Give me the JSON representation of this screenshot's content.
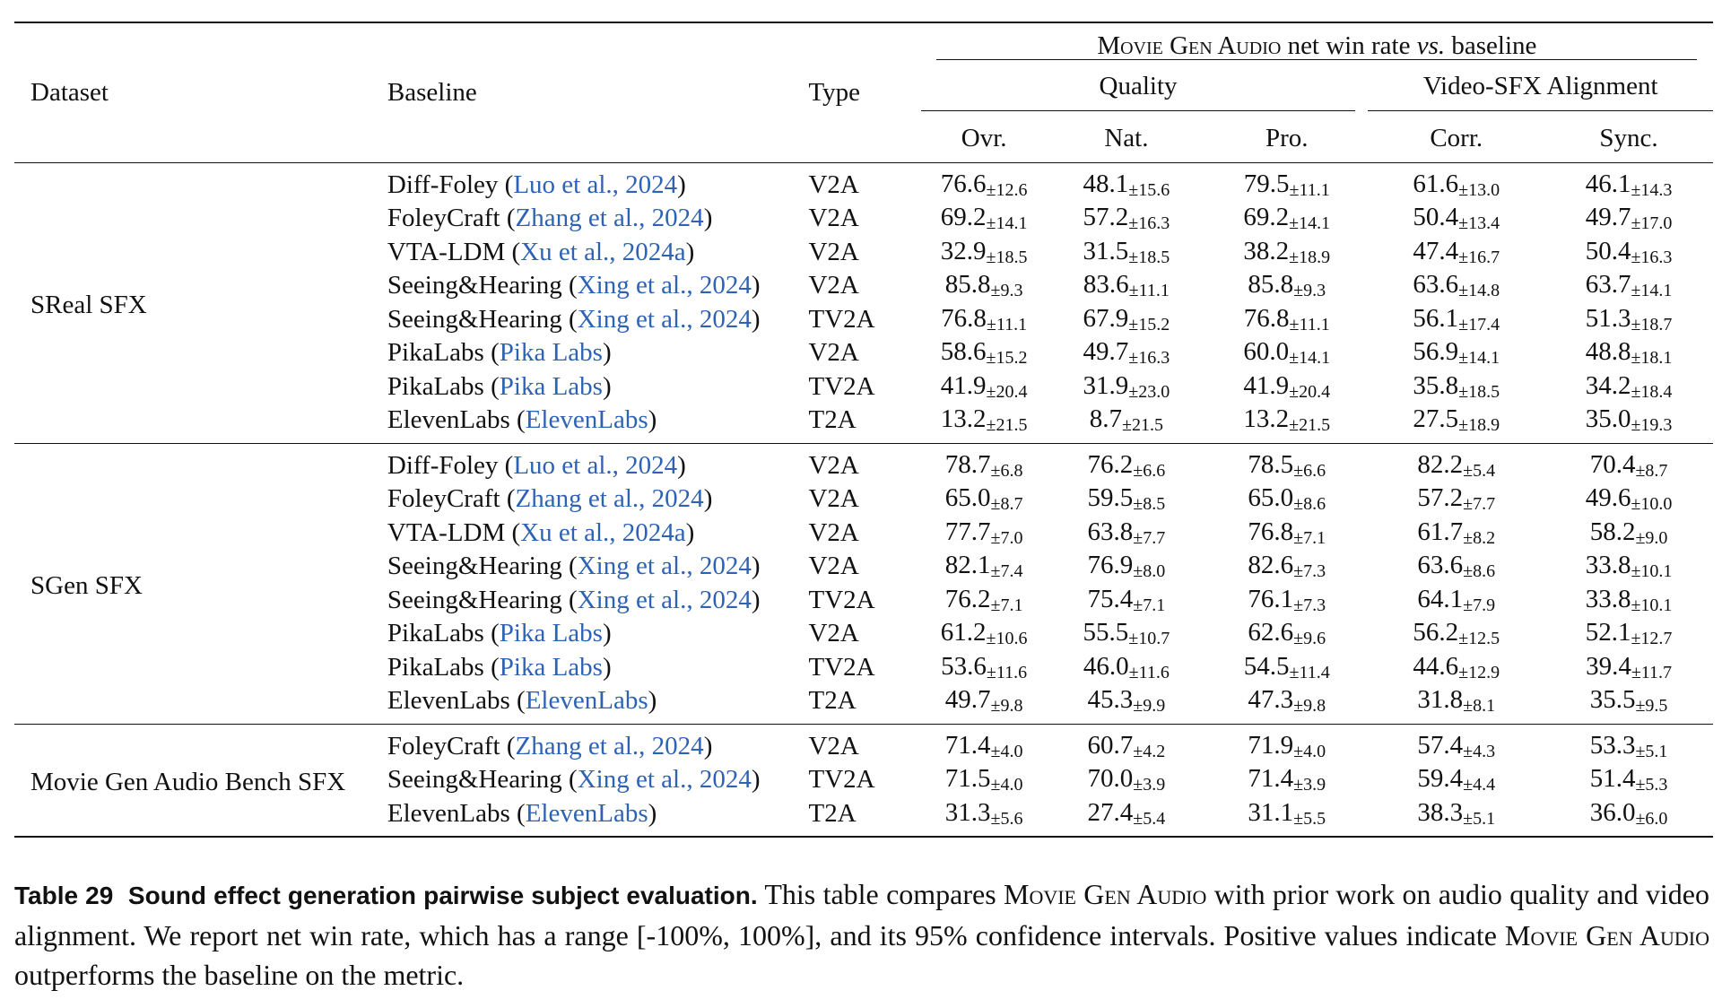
{
  "table": {
    "headers": {
      "dataset": "Dataset",
      "baseline": "Baseline",
      "type": "Type",
      "group_prefix": "Movie Gen Audio",
      "group_mid": " net win rate ",
      "group_vs": "vs.",
      "group_suffix": " baseline",
      "quality": "Quality",
      "alignment": "Video-SFX Alignment",
      "ovr": "Ovr.",
      "nat": "Nat.",
      "pro": "Pro.",
      "corr": "Corr.",
      "sync": "Sync."
    },
    "groups": [
      {
        "dataset": "SReal SFX",
        "rows": [
          {
            "name": "Diff-Foley",
            "cite": "Luo et al., 2024",
            "type": "V2A",
            "vals": [
              [
                "76.6",
                "±12.6"
              ],
              [
                "48.1",
                "±15.6"
              ],
              [
                "79.5",
                "±11.1"
              ],
              [
                "61.6",
                "±13.0"
              ],
              [
                "46.1",
                "±14.3"
              ]
            ]
          },
          {
            "name": "FoleyCraft",
            "cite": "Zhang et al., 2024",
            "type": "V2A",
            "vals": [
              [
                "69.2",
                "±14.1"
              ],
              [
                "57.2",
                "±16.3"
              ],
              [
                "69.2",
                "±14.1"
              ],
              [
                "50.4",
                "±13.4"
              ],
              [
                "49.7",
                "±17.0"
              ]
            ]
          },
          {
            "name": "VTA-LDM",
            "cite": "Xu et al., 2024a",
            "type": "V2A",
            "vals": [
              [
                "32.9",
                "±18.5"
              ],
              [
                "31.5",
                "±18.5"
              ],
              [
                "38.2",
                "±18.9"
              ],
              [
                "47.4",
                "±16.7"
              ],
              [
                "50.4",
                "±16.3"
              ]
            ]
          },
          {
            "name": "Seeing&Hearing",
            "cite": "Xing et al., 2024",
            "type": "V2A",
            "vals": [
              [
                "85.8",
                "±9.3"
              ],
              [
                "83.6",
                "±11.1"
              ],
              [
                "85.8",
                "±9.3"
              ],
              [
                "63.6",
                "±14.8"
              ],
              [
                "63.7",
                "±14.1"
              ]
            ]
          },
          {
            "name": "Seeing&Hearing",
            "cite": "Xing et al., 2024",
            "type": "TV2A",
            "vals": [
              [
                "76.8",
                "±11.1"
              ],
              [
                "67.9",
                "±15.2"
              ],
              [
                "76.8",
                "±11.1"
              ],
              [
                "56.1",
                "±17.4"
              ],
              [
                "51.3",
                "±18.7"
              ]
            ]
          },
          {
            "name": "PikaLabs",
            "cite": "Pika Labs",
            "type": "V2A",
            "vals": [
              [
                "58.6",
                "±15.2"
              ],
              [
                "49.7",
                "±16.3"
              ],
              [
                "60.0",
                "±14.1"
              ],
              [
                "56.9",
                "±14.1"
              ],
              [
                "48.8",
                "±18.1"
              ]
            ]
          },
          {
            "name": "PikaLabs",
            "cite": "Pika Labs",
            "type": "TV2A",
            "vals": [
              [
                "41.9",
                "±20.4"
              ],
              [
                "31.9",
                "±23.0"
              ],
              [
                "41.9",
                "±20.4"
              ],
              [
                "35.8",
                "±18.5"
              ],
              [
                "34.2",
                "±18.4"
              ]
            ]
          },
          {
            "name": "ElevenLabs",
            "cite": "ElevenLabs",
            "type": "T2A",
            "vals": [
              [
                "13.2",
                "±21.5"
              ],
              [
                "8.7",
                "±21.5"
              ],
              [
                "13.2",
                "±21.5"
              ],
              [
                "27.5",
                "±18.9"
              ],
              [
                "35.0",
                "±19.3"
              ]
            ]
          }
        ]
      },
      {
        "dataset": "SGen SFX",
        "rows": [
          {
            "name": "Diff-Foley",
            "cite": "Luo et al., 2024",
            "type": "V2A",
            "vals": [
              [
                "78.7",
                "±6.8"
              ],
              [
                "76.2",
                "±6.6"
              ],
              [
                "78.5",
                "±6.6"
              ],
              [
                "82.2",
                "±5.4"
              ],
              [
                "70.4",
                "±8.7"
              ]
            ]
          },
          {
            "name": "FoleyCraft",
            "cite": "Zhang et al., 2024",
            "type": "V2A",
            "vals": [
              [
                "65.0",
                "±8.7"
              ],
              [
                "59.5",
                "±8.5"
              ],
              [
                "65.0",
                "±8.6"
              ],
              [
                "57.2",
                "±7.7"
              ],
              [
                "49.6",
                "±10.0"
              ]
            ]
          },
          {
            "name": "VTA-LDM",
            "cite": "Xu et al., 2024a",
            "type": "V2A",
            "vals": [
              [
                "77.7",
                "±7.0"
              ],
              [
                "63.8",
                "±7.7"
              ],
              [
                "76.8",
                "±7.1"
              ],
              [
                "61.7",
                "±8.2"
              ],
              [
                "58.2",
                "±9.0"
              ]
            ]
          },
          {
            "name": "Seeing&Hearing",
            "cite": "Xing et al., 2024",
            "type": "V2A",
            "vals": [
              [
                "82.1",
                "±7.4"
              ],
              [
                "76.9",
                "±8.0"
              ],
              [
                "82.6",
                "±7.3"
              ],
              [
                "63.6",
                "±8.6"
              ],
              [
                "33.8",
                "±10.1"
              ]
            ]
          },
          {
            "name": "Seeing&Hearing",
            "cite": "Xing et al., 2024",
            "type": "TV2A",
            "vals": [
              [
                "76.2",
                "±7.1"
              ],
              [
                "75.4",
                "±7.1"
              ],
              [
                "76.1",
                "±7.3"
              ],
              [
                "64.1",
                "±7.9"
              ],
              [
                "33.8",
                "±10.1"
              ]
            ]
          },
          {
            "name": "PikaLabs",
            "cite": "Pika Labs",
            "type": "V2A",
            "vals": [
              [
                "61.2",
                "±10.6"
              ],
              [
                "55.5",
                "±10.7"
              ],
              [
                "62.6",
                "±9.6"
              ],
              [
                "56.2",
                "±12.5"
              ],
              [
                "52.1",
                "±12.7"
              ]
            ]
          },
          {
            "name": "PikaLabs",
            "cite": "Pika Labs",
            "type": "TV2A",
            "vals": [
              [
                "53.6",
                "±11.6"
              ],
              [
                "46.0",
                "±11.6"
              ],
              [
                "54.5",
                "±11.4"
              ],
              [
                "44.6",
                "±12.9"
              ],
              [
                "39.4",
                "±11.7"
              ]
            ]
          },
          {
            "name": "ElevenLabs",
            "cite": "ElevenLabs",
            "type": "T2A",
            "vals": [
              [
                "49.7",
                "±9.8"
              ],
              [
                "45.3",
                "±9.9"
              ],
              [
                "47.3",
                "±9.8"
              ],
              [
                "31.8",
                "±8.1"
              ],
              [
                "35.5",
                "±9.5"
              ]
            ]
          }
        ]
      },
      {
        "dataset": "Movie Gen Audio Bench SFX",
        "rows": [
          {
            "name": "FoleyCraft",
            "cite": "Zhang et al., 2024",
            "type": "V2A",
            "vals": [
              [
                "71.4",
                "±4.0"
              ],
              [
                "60.7",
                "±4.2"
              ],
              [
                "71.9",
                "±4.0"
              ],
              [
                "57.4",
                "±4.3"
              ],
              [
                "53.3",
                "±5.1"
              ]
            ]
          },
          {
            "name": "Seeing&Hearing",
            "cite": "Xing et al., 2024",
            "type": "TV2A",
            "vals": [
              [
                "71.5",
                "±4.0"
              ],
              [
                "70.0",
                "±3.9"
              ],
              [
                "71.4",
                "±3.9"
              ],
              [
                "59.4",
                "±4.4"
              ],
              [
                "51.4",
                "±5.3"
              ]
            ]
          },
          {
            "name": "ElevenLabs",
            "cite": "ElevenLabs",
            "type": "T2A",
            "vals": [
              [
                "31.3",
                "±5.6"
              ],
              [
                "27.4",
                "±5.4"
              ],
              [
                "31.1",
                "±5.5"
              ],
              [
                "38.3",
                "±5.1"
              ],
              [
                "36.0",
                "±6.0"
              ]
            ]
          }
        ]
      }
    ]
  },
  "caption": {
    "label": "Table 29",
    "title": "Sound effect generation pairwise subject evaluation.",
    "t1": " This table compares ",
    "sc1": "Movie Gen Audio",
    "t2": " with prior work on audio quality and video alignment. We report net win rate, which has a range [-100%, 100%], and its 95% confidence intervals. Positive values indicate ",
    "sc2": "Movie Gen Audio",
    "t3": " outperforms the baseline on the metric."
  }
}
